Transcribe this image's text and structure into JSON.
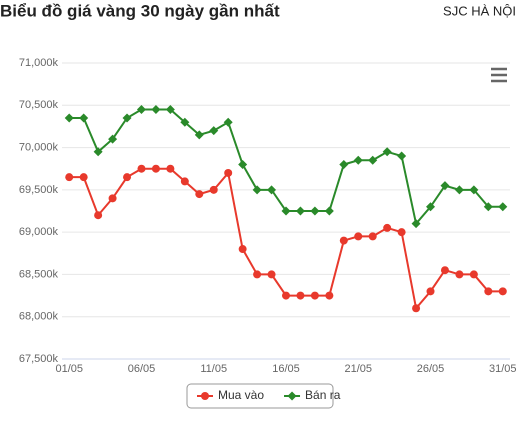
{
  "chart_data": {
    "type": "line",
    "title": "Biểu đồ giá vàng 30 ngày gần nhất",
    "subtitle": "SJC HÀ NỘI",
    "categories": [
      "01/05",
      null,
      null,
      null,
      null,
      "06/05",
      null,
      null,
      null,
      null,
      "11/05",
      null,
      null,
      null,
      null,
      "16/05",
      null,
      null,
      null,
      null,
      "21/05",
      null,
      null,
      null,
      null,
      "26/05",
      null,
      null,
      null,
      null,
      "31/05"
    ],
    "series": [
      {
        "name": "Mua vào",
        "color": "#e8392c",
        "marker": "circle",
        "values": [
          69650,
          69650,
          69200,
          69400,
          69650,
          69750,
          69750,
          69750,
          69600,
          69450,
          69500,
          69700,
          68800,
          68500,
          68500,
          68250,
          68250,
          68250,
          68250,
          68900,
          68950,
          68950,
          69050,
          69000,
          68100,
          68300,
          68550,
          68500,
          68500,
          68300,
          68300
        ]
      },
      {
        "name": "Bán ra",
        "color": "#2a8a2a",
        "marker": "diamond",
        "values": [
          70350,
          70350,
          69950,
          70100,
          70350,
          70450,
          70450,
          70450,
          70300,
          70150,
          70200,
          70300,
          69800,
          69500,
          69500,
          69250,
          69250,
          69250,
          69250,
          69800,
          69850,
          69850,
          69950,
          69900,
          69100,
          69300,
          69550,
          69500,
          69500,
          69300,
          69300
        ]
      }
    ],
    "ylim": [
      67500,
      71000
    ],
    "yticks": [
      {
        "value": 67500,
        "label": "67,500k"
      },
      {
        "value": 68000,
        "label": "68,000k"
      },
      {
        "value": 68500,
        "label": "68,500k"
      },
      {
        "value": 69000,
        "label": "69,000k"
      },
      {
        "value": 69500,
        "label": "69,500k"
      },
      {
        "value": 70000,
        "label": "70,000k"
      },
      {
        "value": 70500,
        "label": "70,500k"
      },
      {
        "value": 71000,
        "label": "71,000k"
      }
    ],
    "grid": true,
    "legend": "bottom"
  }
}
